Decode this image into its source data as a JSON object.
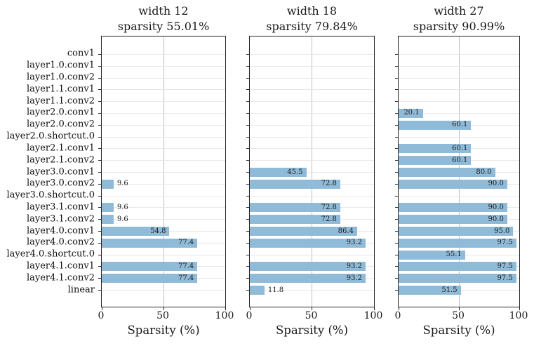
{
  "figure": {
    "background": "#ffffff",
    "bar_color": "#8fbbd9",
    "spine_color": "#262626",
    "vgrid_color": "#bfbfbf",
    "hgrid_color": "#e7e7e7",
    "categories": [
      "conv1",
      "layer1.0.conv1",
      "layer1.0.conv2",
      "layer1.1.conv1",
      "layer1.1.conv2",
      "layer2.0.conv1",
      "layer2.0.conv2",
      "layer2.0.shortcut.0",
      "layer2.1.conv1",
      "layer2.1.conv2",
      "layer3.0.conv1",
      "layer3.0.conv2",
      "layer3.0.shortcut.0",
      "layer3.1.conv1",
      "layer3.1.conv2",
      "layer4.0.conv1",
      "layer4.0.conv2",
      "layer4.0.shortcut.0",
      "layer4.1.conv1",
      "layer4.1.conv2",
      "linear"
    ],
    "xtick_labels": [
      "0",
      "50",
      "100"
    ]
  },
  "chart_data": [
    {
      "type": "bar",
      "orientation": "horizontal",
      "title_line1": "width 12",
      "title_line2": "sparsity 55.01%",
      "xlabel": "Sparsity (%)",
      "xlim": [
        0,
        100
      ],
      "xticks": [
        0,
        50,
        100
      ],
      "grid": true,
      "categories": [
        "conv1",
        "layer1.0.conv1",
        "layer1.0.conv2",
        "layer1.1.conv1",
        "layer1.1.conv2",
        "layer2.0.conv1",
        "layer2.0.conv2",
        "layer2.0.shortcut.0",
        "layer2.1.conv1",
        "layer2.1.conv2",
        "layer3.0.conv1",
        "layer3.0.conv2",
        "layer3.0.shortcut.0",
        "layer3.1.conv1",
        "layer3.1.conv2",
        "layer4.0.conv1",
        "layer4.0.conv2",
        "layer4.0.shortcut.0",
        "layer4.1.conv1",
        "layer4.1.conv2",
        "linear"
      ],
      "values": [
        0,
        0,
        0,
        0,
        0,
        0,
        0,
        0,
        0,
        0,
        0,
        9.6,
        0,
        9.6,
        9.6,
        54.8,
        77.4,
        0,
        77.4,
        77.4,
        0
      ]
    },
    {
      "type": "bar",
      "orientation": "horizontal",
      "title_line1": "width 18",
      "title_line2": "sparsity 79.84%",
      "xlabel": "Sparsity (%)",
      "xlim": [
        0,
        100
      ],
      "xticks": [
        0,
        50,
        100
      ],
      "grid": true,
      "categories": [
        "conv1",
        "layer1.0.conv1",
        "layer1.0.conv2",
        "layer1.1.conv1",
        "layer1.1.conv2",
        "layer2.0.conv1",
        "layer2.0.conv2",
        "layer2.0.shortcut.0",
        "layer2.1.conv1",
        "layer2.1.conv2",
        "layer3.0.conv1",
        "layer3.0.conv2",
        "layer3.0.shortcut.0",
        "layer3.1.conv1",
        "layer3.1.conv2",
        "layer4.0.conv1",
        "layer4.0.conv2",
        "layer4.0.shortcut.0",
        "layer4.1.conv1",
        "layer4.1.conv2",
        "linear"
      ],
      "values": [
        0,
        0,
        0,
        0,
        0,
        0,
        0,
        0,
        0,
        0,
        45.5,
        72.8,
        0,
        72.8,
        72.8,
        86.4,
        93.2,
        0,
        93.2,
        93.2,
        11.8
      ]
    },
    {
      "type": "bar",
      "orientation": "horizontal",
      "title_line1": "width 27",
      "title_line2": "sparsity 90.99%",
      "xlabel": "Sparsity (%)",
      "xlim": [
        0,
        100
      ],
      "xticks": [
        0,
        50,
        100
      ],
      "grid": true,
      "categories": [
        "conv1",
        "layer1.0.conv1",
        "layer1.0.conv2",
        "layer1.1.conv1",
        "layer1.1.conv2",
        "layer2.0.conv1",
        "layer2.0.conv2",
        "layer2.0.shortcut.0",
        "layer2.1.conv1",
        "layer2.1.conv2",
        "layer3.0.conv1",
        "layer3.0.conv2",
        "layer3.0.shortcut.0",
        "layer3.1.conv1",
        "layer3.1.conv2",
        "layer4.0.conv1",
        "layer4.0.conv2",
        "layer4.0.shortcut.0",
        "layer4.1.conv1",
        "layer4.1.conv2",
        "linear"
      ],
      "values": [
        0,
        0,
        0,
        0,
        0,
        20.1,
        60.1,
        0,
        60.1,
        60.1,
        80.0,
        90.0,
        0,
        90.0,
        90.0,
        95.0,
        97.5,
        55.1,
        97.5,
        97.5,
        51.5
      ]
    }
  ]
}
